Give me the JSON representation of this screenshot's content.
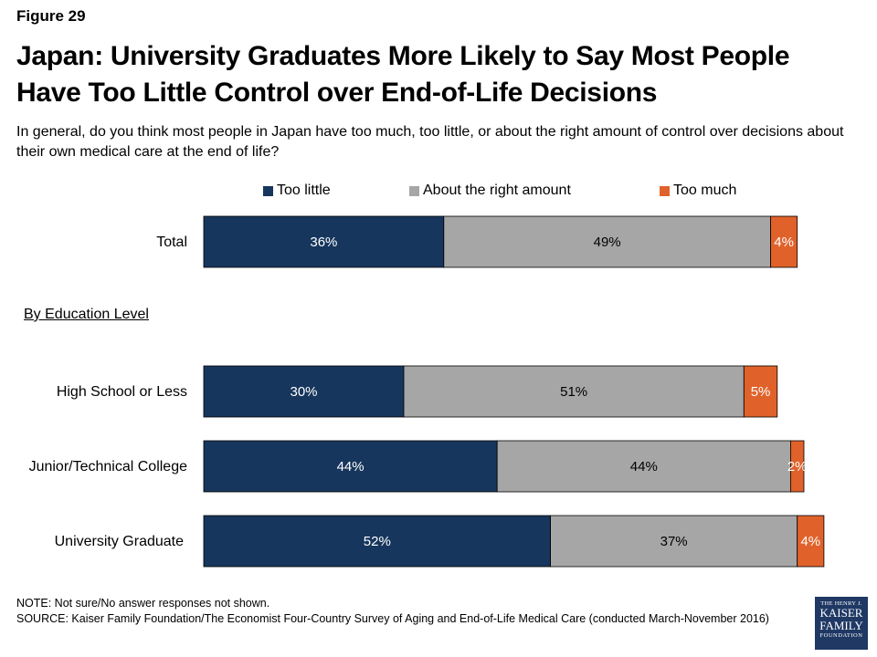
{
  "figure_label": "Figure 29",
  "title": "Japan: University Graduates More Likely to Say Most People Have Too Little Control over End-of-Life Decisions",
  "subtitle": "In general, do you think most people in Japan have too much, too little, or about the right amount of control over decisions about their own medical care at the end of life?",
  "section_label": "By Education Level",
  "note": "NOTE: Not sure/No answer responses not shown.",
  "source": "SOURCE: Kaiser Family Foundation/The Economist Four-Country Survey of Aging and End-of-Life Medical Care (conducted March-November 2016)",
  "logo": {
    "line1": "THE HENRY J.",
    "line2": "KAISER",
    "line3": "FAMILY",
    "line4": "FOUNDATION"
  },
  "colors": {
    "too_little": "#17365d",
    "about_right": "#a6a6a6",
    "too_much": "#e0622a"
  },
  "chart_data": {
    "type": "bar",
    "orientation": "horizontal",
    "stacked": true,
    "categories": [
      "Total",
      "High School or Less",
      "Junior/Technical College",
      "University Graduate"
    ],
    "series": [
      {
        "name": "Too little",
        "values": [
          36,
          30,
          44,
          52
        ],
        "labels": [
          "36%",
          "30%",
          "44%",
          "52%"
        ],
        "color": "#17365d"
      },
      {
        "name": "About the right amount",
        "values": [
          49,
          51,
          44,
          37
        ],
        "labels": [
          "49%",
          "51%",
          "44%",
          "37%"
        ],
        "color": "#a6a6a6"
      },
      {
        "name": "Too much",
        "values": [
          4,
          5,
          2,
          4
        ],
        "labels": [
          "4%",
          "5%",
          "2%",
          "4%"
        ],
        "color": "#e0622a"
      }
    ],
    "legend_position": "top",
    "grid": false
  }
}
